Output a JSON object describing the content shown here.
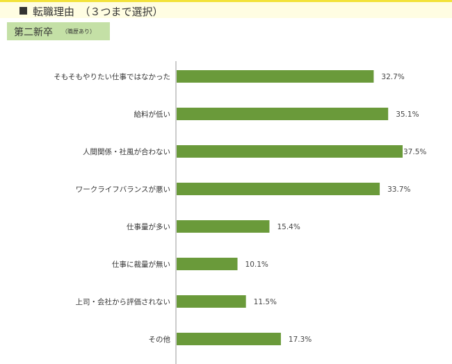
{
  "header": {
    "title": "転職理由　（３つまで選択）"
  },
  "tag": {
    "main": "第二新卒",
    "sub": "（職歴あり）"
  },
  "colors": {
    "bar": "#6a9a3a",
    "header_bg": "#fffde2",
    "header_border": "#f2e23a",
    "tag_bg": "#c4e0a6"
  },
  "chart_data": {
    "type": "bar",
    "orientation": "horizontal",
    "categories": [
      "そもそもやりたい仕事ではなかった",
      "給料が低い",
      "人間関係・社風が合わない",
      "ワークライフバランスが悪い",
      "仕事量が多い",
      "仕事に裁量が無い",
      "上司・会社から評価されない",
      "その他"
    ],
    "values": [
      32.7,
      35.1,
      37.5,
      33.7,
      15.4,
      10.1,
      11.5,
      17.3
    ],
    "value_labels": [
      "32.7%",
      "35.1%",
      "37.5%",
      "33.7%",
      "15.4%",
      "10.1%",
      "11.5%",
      "17.3%"
    ],
    "xlim": [
      0,
      37.5
    ],
    "grid": false
  }
}
